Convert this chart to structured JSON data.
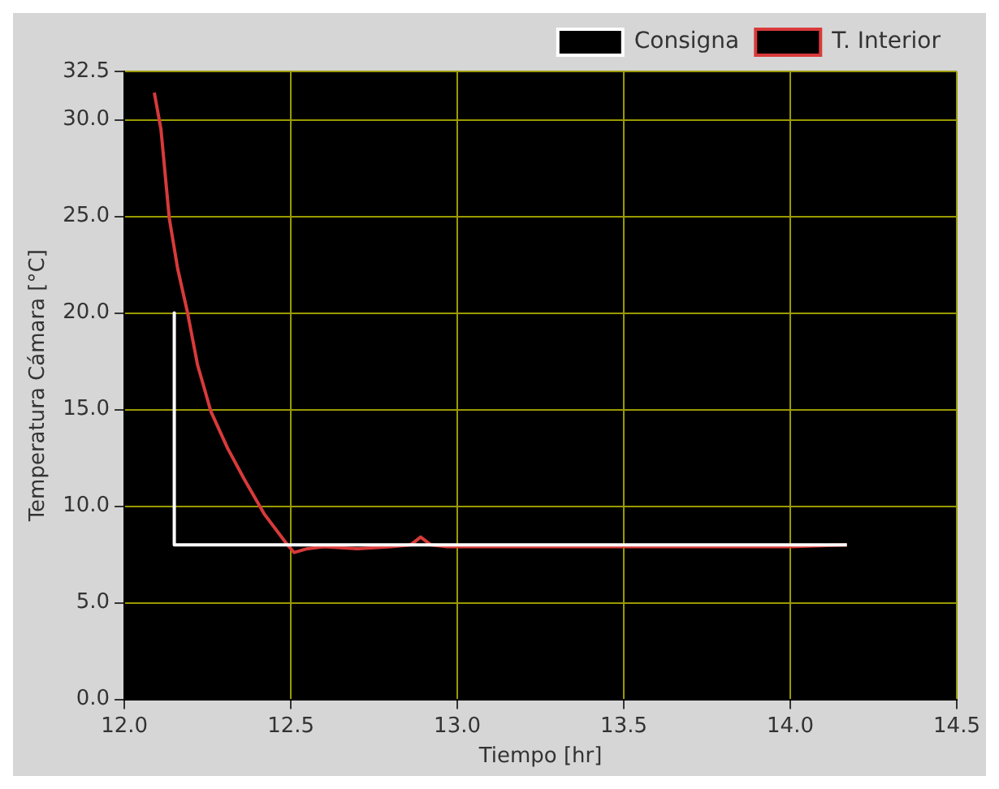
{
  "chart_data": {
    "type": "line",
    "xlabel": "Tiempo [hr]",
    "ylabel": "Temperatura Cámara [°C]",
    "xlim": [
      12.0,
      14.5
    ],
    "xticks": [
      {
        "value": 12.0,
        "label": "12.0"
      },
      {
        "value": 12.5,
        "label": "12.5"
      },
      {
        "value": 13.0,
        "label": "13.0"
      },
      {
        "value": 13.5,
        "label": "13.5"
      },
      {
        "value": 14.0,
        "label": "14.0"
      },
      {
        "value": 14.5,
        "label": "14.5"
      }
    ],
    "ylim": [
      0,
      32.5
    ],
    "yticks": [
      {
        "value": 0,
        "label": "0.0"
      },
      {
        "value": 5,
        "label": "5.0"
      },
      {
        "value": 10,
        "label": "10.0"
      },
      {
        "value": 15,
        "label": "15.0"
      },
      {
        "value": 20,
        "label": "20.0"
      },
      {
        "value": 25,
        "label": "25.0"
      },
      {
        "value": 30,
        "label": "30.0"
      },
      {
        "value": 32.5,
        "label": "32.5"
      }
    ],
    "grid": true,
    "legend": "top right",
    "marker": "none",
    "line_style": "solid",
    "series": [
      {
        "name": "Consigna",
        "color": "#ffffff",
        "x": [
          12.15,
          12.15,
          14.17
        ],
        "values": [
          20,
          8,
          8
        ]
      },
      {
        "name": "T. Interior",
        "color": "#d83a3a",
        "x": [
          12.09,
          12.11,
          12.135,
          12.16,
          12.19,
          12.22,
          12.26,
          12.31,
          12.36,
          12.42,
          12.49,
          12.51,
          12.55,
          12.6,
          12.7,
          12.8,
          12.86,
          12.89,
          12.92,
          12.97,
          13.2,
          13.5,
          13.8,
          14.0,
          14.17
        ],
        "values": [
          31.4,
          29.5,
          24.9,
          22.3,
          20.0,
          17.3,
          14.9,
          13.0,
          11.4,
          9.6,
          8.0,
          7.6,
          7.8,
          7.9,
          7.8,
          7.9,
          8.0,
          8.4,
          8.0,
          7.9,
          7.9,
          7.9,
          7.9,
          7.9,
          8.0
        ]
      }
    ]
  }
}
